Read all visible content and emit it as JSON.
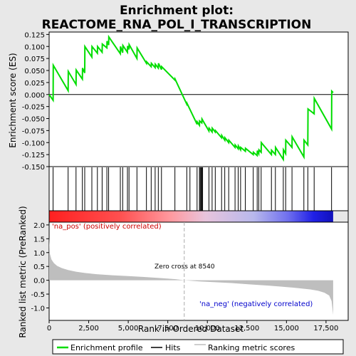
{
  "title_line1": "Enrichment plot:",
  "title_line2": "REACTOME_RNA_POL_I_TRANSCRIPTION",
  "colors": {
    "enrichment_line": "#00dd00",
    "hits": "#000000",
    "metric_fill": "#bebebe",
    "pos_label": "#cc0000",
    "neg_label": "#0000cc",
    "zero_line": "#aaaaaa"
  },
  "chart_data": [
    {
      "type": "line",
      "name": "enrichment-profile",
      "ylabel": "Enrichment score (ES)",
      "xlim": [
        0,
        18900
      ],
      "ylim": [
        -0.15,
        0.13
      ],
      "yticks": [
        0.125,
        0.1,
        0.075,
        0.05,
        0.025,
        0.0,
        -0.025,
        -0.05,
        -0.075,
        -0.1,
        -0.125,
        -0.15
      ],
      "ytick_labels": [
        "0.125",
        "0.100",
        "0.075",
        "0.050",
        "0.025",
        "0.000",
        "-0.025",
        "-0.050",
        "-0.075",
        "-0.100",
        "-0.125",
        "-0.150"
      ],
      "x": [
        0,
        250,
        260,
        1200,
        1210,
        1700,
        1710,
        2100,
        2110,
        2250,
        2260,
        2700,
        2710,
        3050,
        3060,
        3350,
        3360,
        3650,
        3660,
        3760,
        3770,
        4500,
        4510,
        4650,
        4660,
        4950,
        4960,
        5050,
        5060,
        5550,
        5560,
        6150,
        6160,
        6450,
        6460,
        6700,
        6710,
        6900,
        6910,
        7100,
        7110,
        7950,
        7960,
        8700,
        8710,
        9350,
        9360,
        9500,
        9510,
        9650,
        9660,
        10100,
        10110,
        10300,
        10310,
        10500,
        10510,
        10900,
        10910,
        11100,
        11110,
        11350,
        11360,
        11750,
        11760,
        11950,
        11960,
        12100,
        12110,
        12400,
        12410,
        12900,
        12910,
        13150,
        13160,
        13250,
        13260,
        13400,
        13410,
        14050,
        14060,
        14300,
        14310,
        14800,
        14810,
        14950,
        14960,
        15350,
        15360,
        16100,
        16110,
        16350,
        16360,
        16750,
        16760,
        17850,
        17860,
        17950
      ],
      "y": [
        0.0,
        -0.012,
        0.061,
        0.008,
        0.048,
        0.021,
        0.051,
        0.032,
        0.055,
        0.045,
        0.1,
        0.078,
        0.1,
        0.086,
        0.1,
        0.088,
        0.105,
        0.097,
        0.111,
        0.103,
        0.12,
        0.085,
        0.1,
        0.087,
        0.102,
        0.088,
        0.101,
        0.094,
        0.104,
        0.075,
        0.097,
        0.065,
        0.068,
        0.058,
        0.065,
        0.056,
        0.063,
        0.055,
        0.065,
        0.052,
        0.058,
        0.03,
        0.032,
        -0.02,
        -0.018,
        -0.062,
        -0.057,
        -0.064,
        -0.055,
        -0.059,
        -0.051,
        -0.076,
        -0.07,
        -0.078,
        -0.07,
        -0.078,
        -0.075,
        -0.09,
        -0.085,
        -0.095,
        -0.09,
        -0.1,
        -0.095,
        -0.11,
        -0.105,
        -0.113,
        -0.107,
        -0.115,
        -0.11,
        -0.118,
        -0.112,
        -0.125,
        -0.12,
        -0.127,
        -0.117,
        -0.123,
        -0.115,
        -0.12,
        -0.1,
        -0.125,
        -0.116,
        -0.125,
        -0.11,
        -0.135,
        -0.115,
        -0.123,
        -0.095,
        -0.11,
        -0.088,
        -0.13,
        -0.095,
        -0.105,
        -0.03,
        -0.04,
        -0.008,
        -0.072,
        0.007,
        0.004
      ]
    },
    {
      "type": "scatter",
      "name": "hits",
      "x": [
        250,
        1200,
        1700,
        2100,
        2250,
        2700,
        3050,
        3350,
        3650,
        3760,
        4500,
        4650,
        4950,
        5050,
        5550,
        6150,
        6450,
        6700,
        6900,
        7100,
        7950,
        8700,
        8900,
        9350,
        9500,
        9550,
        9600,
        9650,
        9700,
        10100,
        10300,
        10500,
        10900,
        11100,
        11350,
        11750,
        11950,
        12100,
        12400,
        12900,
        13150,
        13250,
        13400,
        14050,
        14300,
        14800,
        14950,
        15350,
        16100,
        16350,
        16750,
        17850
      ]
    },
    {
      "type": "area",
      "name": "ranking-metric",
      "ylabel": "Ranked list metric (PreRanked)",
      "xlabel": "Rank in Ordered Dataset",
      "xlim": [
        0,
        18900
      ],
      "ylim": [
        -1.45,
        2.1
      ],
      "xticks": [
        0,
        2500,
        5000,
        7500,
        10000,
        12500,
        15000,
        17500
      ],
      "xtick_labels": [
        "0",
        "2,500",
        "5,000",
        "7,500",
        "10,000",
        "12,500",
        "15,000",
        "17,500"
      ],
      "yticks": [
        2.0,
        1.5,
        1.0,
        0.5,
        0.0,
        -0.5,
        -1.0
      ],
      "ytick_labels": [
        "2.0",
        "1.5",
        "1.0",
        "0.5",
        "0.0",
        "-0.5",
        "-1.0"
      ],
      "x": [
        0,
        50,
        150,
        300,
        500,
        800,
        1200,
        1700,
        2300,
        3000,
        4000,
        5000,
        6000,
        7000,
        8000,
        8540,
        9500,
        10500,
        11500,
        12500,
        13500,
        14500,
        15500,
        16500,
        17000,
        17400,
        17700,
        17850,
        17950
      ],
      "y": [
        1.55,
        0.95,
        0.75,
        0.62,
        0.52,
        0.44,
        0.37,
        0.31,
        0.26,
        0.22,
        0.18,
        0.15,
        0.12,
        0.08,
        0.04,
        0.0,
        -0.04,
        -0.07,
        -0.1,
        -0.14,
        -0.18,
        -0.22,
        -0.27,
        -0.33,
        -0.38,
        -0.45,
        -0.55,
        -0.75,
        -1.25
      ],
      "zero_cross_label": "Zero cross at 8540",
      "zero_cross_x": 8540,
      "pos_label": "'na_pos' (positively correlated)",
      "neg_label": "'na_neg' (negatively correlated)"
    }
  ],
  "legend": {
    "items": [
      {
        "label": "Enrichment profile",
        "swatch": "green-line"
      },
      {
        "label": "Hits",
        "swatch": "black-line"
      },
      {
        "label": "Ranking metric scores",
        "swatch": "gray-line"
      }
    ]
  },
  "heatbar": {
    "stops": [
      "#ff2020",
      "#ff5050",
      "#ff9aa0",
      "#e8c4dc",
      "#b8b8ec",
      "#7070ee",
      "#2020e6",
      "#1010bb"
    ],
    "stop_positions": [
      0,
      0.25,
      0.43,
      0.55,
      0.72,
      0.84,
      0.93,
      1
    ]
  }
}
